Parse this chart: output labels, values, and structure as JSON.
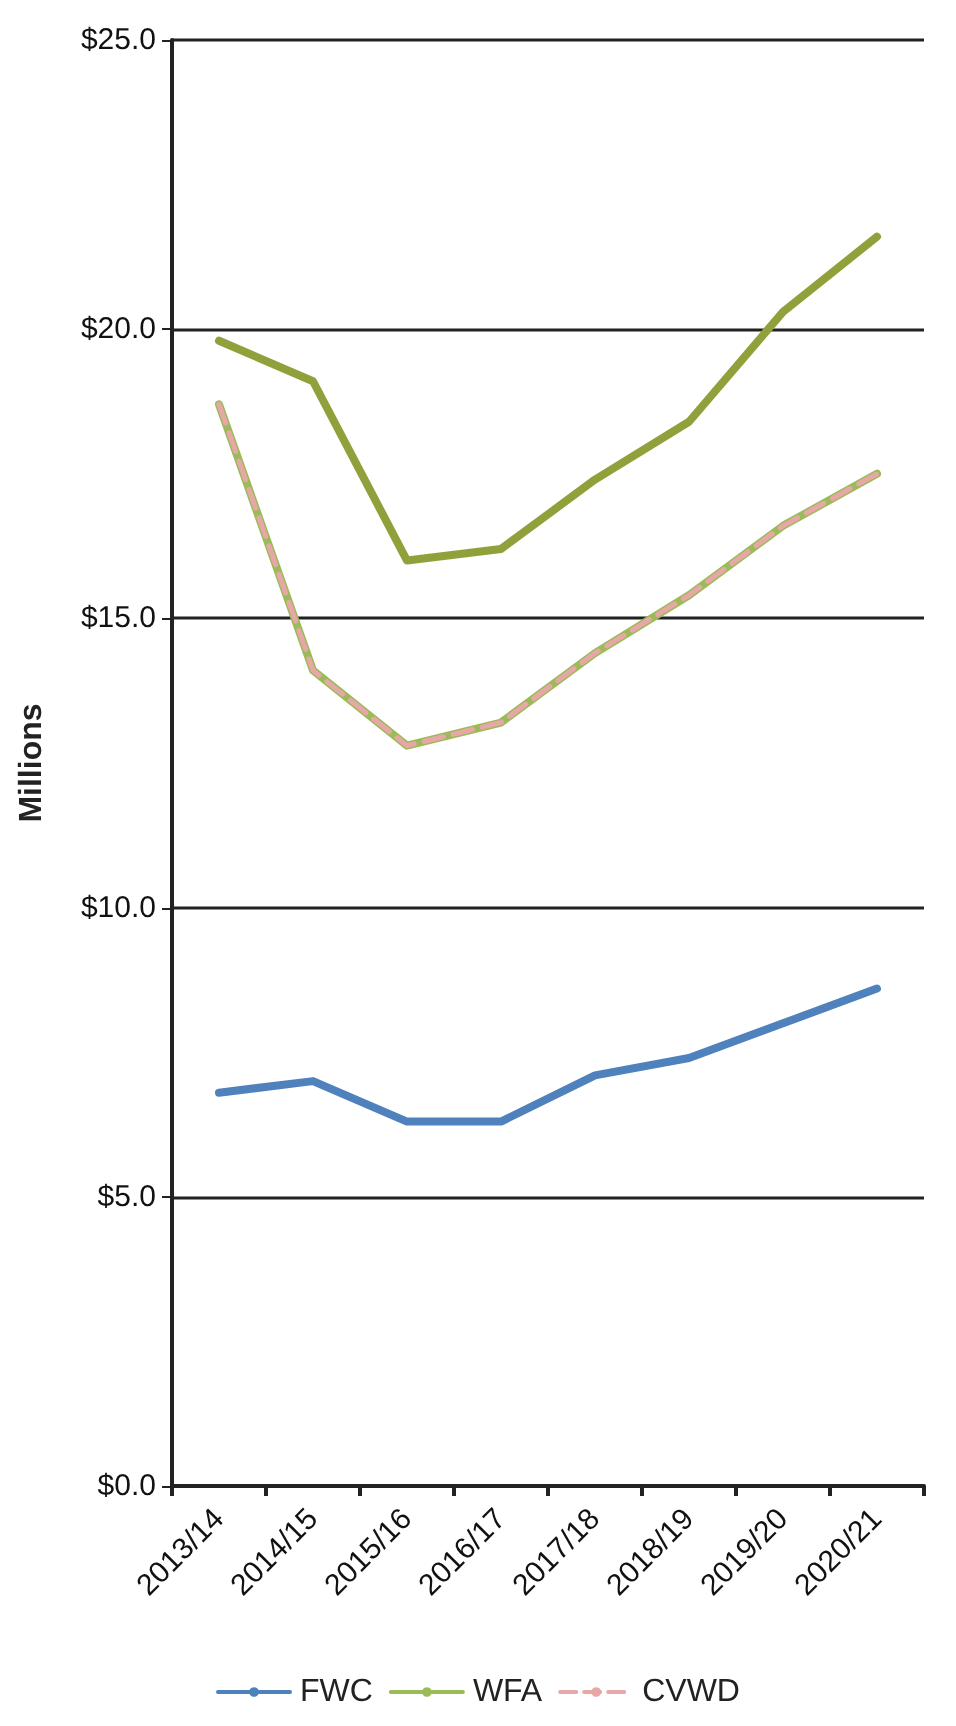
{
  "chart_data": {
    "type": "line",
    "ylabel": "Millions",
    "categories": [
      "2013/14",
      "2014/15",
      "2015/16",
      "2016/17",
      "2017/18",
      "2018/19",
      "2019/20",
      "2020/21"
    ],
    "series": [
      {
        "name": "FWC",
        "color": "#4f81bd",
        "line_style": "solid",
        "values": [
          6.8,
          7.0,
          6.3,
          6.3,
          7.1,
          7.4,
          8.0,
          8.6
        ]
      },
      {
        "name": "WFA",
        "color": "#9bbb59",
        "line_style": "solid",
        "values": [
          18.7,
          14.1,
          12.8,
          13.2,
          14.4,
          15.4,
          16.6,
          17.5
        ]
      },
      {
        "name": "CVWD",
        "color": "#e8a7a7",
        "line_style": "dashed",
        "values": [
          18.7,
          14.1,
          12.8,
          13.2,
          14.4,
          15.4,
          16.6,
          17.5
        ]
      },
      {
        "color": "#92a03c",
        "line_style": "solid",
        "values": [
          19.8,
          19.1,
          16.0,
          16.2,
          17.4,
          18.4,
          20.3,
          21.6
        ]
      }
    ],
    "ylim": [
      0,
      25
    ],
    "yticks": [
      {
        "value": 0,
        "label": "$0.0"
      },
      {
        "value": 5,
        "label": "$5.0"
      },
      {
        "value": 10,
        "label": "$10.0"
      },
      {
        "value": 15,
        "label": "$15.0"
      },
      {
        "value": 20,
        "label": "$20.0"
      },
      {
        "value": 25,
        "label": "$25.0"
      }
    ],
    "grid": "y",
    "legend": "bottom",
    "marker": "none"
  }
}
